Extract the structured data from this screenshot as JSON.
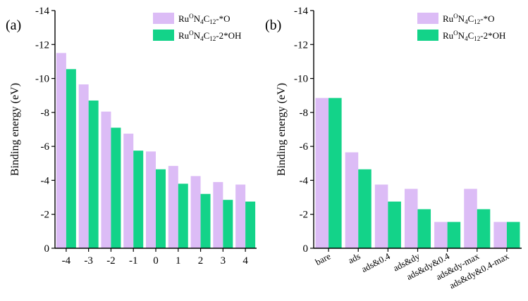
{
  "colors": {
    "series_o": "#dcbcf6",
    "series_oh": "#13d389",
    "axis": "#000000"
  },
  "chart_data": [
    {
      "type": "bar",
      "panel_label": "(a)",
      "ylabel": "Binding energy (eV)",
      "ylim": [
        0,
        -14
      ],
      "yticks": [
        0,
        -2,
        -4,
        -6,
        -8,
        -10,
        -12,
        -14
      ],
      "ytick_labels": [
        "0",
        "-2",
        "-4",
        "-6",
        "-8",
        "-10",
        "-12",
        "-14"
      ],
      "categories": [
        "-4",
        "-3",
        "-2",
        "-1",
        "0",
        "1",
        "2",
        "3",
        "4"
      ],
      "legend_position": "top-right",
      "series": [
        {
          "legend": {
            "base": "Ru",
            "sup": "O",
            "mid1": "N",
            "sub1": "4",
            "mid2": "C",
            "sub2": "12",
            "tail": "-*O"
          },
          "values": [
            -11.5,
            -9.65,
            -8.05,
            -6.75,
            -5.7,
            -4.85,
            -4.25,
            -3.9,
            -3.75
          ]
        },
        {
          "legend": {
            "base": "Ru",
            "sup": "O",
            "mid1": "N",
            "sub1": "4",
            "mid2": "C",
            "sub2": "12",
            "tail": "-2*OH"
          },
          "values": [
            -10.55,
            -8.7,
            -7.1,
            -5.75,
            -4.65,
            -3.8,
            -3.2,
            -2.85,
            -2.75
          ]
        }
      ]
    },
    {
      "type": "bar",
      "panel_label": "(b)",
      "ylabel": "Binding energy (eV)",
      "ylim": [
        0,
        -14
      ],
      "yticks": [
        0,
        -2,
        -4,
        -6,
        -8,
        -10,
        -12,
        -14
      ],
      "ytick_labels": [
        "0",
        "-2",
        "-4",
        "-6",
        "-8",
        "-10",
        "-12",
        "-14"
      ],
      "categories": [
        "bare",
        "ads",
        "ads&0.4",
        "ads&dy",
        "ads&dy&0.4",
        "ads&dy-max",
        "ads&dy&0.4-max"
      ],
      "legend_position": "top-right",
      "series": [
        {
          "legend": {
            "base": "Ru",
            "sup": "O",
            "mid1": "N",
            "sub1": "4",
            "mid2": "C",
            "sub2": "12",
            "tail": "-*O"
          },
          "values": [
            -8.85,
            -5.65,
            -3.75,
            -3.5,
            -1.55,
            -3.5,
            -1.55
          ]
        },
        {
          "legend": {
            "base": "Ru",
            "sup": "O",
            "mid1": "N",
            "sub1": "4",
            "mid2": "C",
            "sub2": "12",
            "tail": "-2*OH"
          },
          "values": [
            -8.85,
            -4.65,
            -2.75,
            -2.3,
            -1.55,
            -2.3,
            -1.55
          ]
        }
      ]
    }
  ]
}
